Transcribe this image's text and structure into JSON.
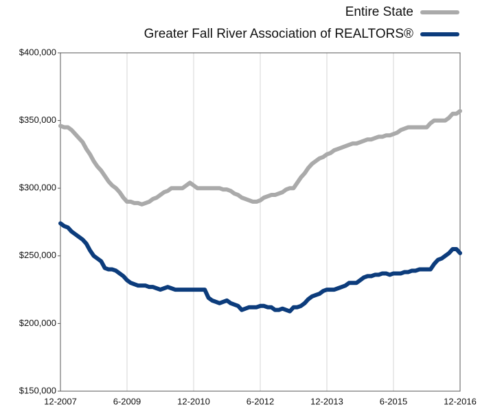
{
  "chart_data": {
    "type": "line",
    "categories": [
      "12-2007",
      null,
      null,
      null,
      null,
      null,
      null,
      null,
      null,
      null,
      null,
      null,
      null,
      null,
      null,
      null,
      null,
      null,
      "6-2009",
      null,
      null,
      null,
      null,
      null,
      null,
      null,
      null,
      null,
      null,
      null,
      null,
      null,
      null,
      null,
      null,
      null,
      "12-2010",
      null,
      null,
      null,
      null,
      null,
      null,
      null,
      null,
      null,
      null,
      null,
      null,
      null,
      null,
      null,
      null,
      null,
      "6-2012",
      null,
      null,
      null,
      null,
      null,
      null,
      null,
      null,
      null,
      null,
      null,
      null,
      null,
      null,
      null,
      null,
      null,
      "12-2013",
      null,
      null,
      null,
      null,
      null,
      null,
      null,
      null,
      null,
      null,
      null,
      null,
      null,
      null,
      null,
      null,
      null,
      "6-2015",
      null,
      null,
      null,
      null,
      null,
      null,
      null,
      null,
      null,
      null,
      null,
      null,
      null,
      null,
      null,
      null,
      null,
      "12-2016"
    ],
    "series": [
      {
        "name": "Entire State",
        "color": "#aaaaaa",
        "values": [
          346000,
          345000,
          345000,
          343000,
          340000,
          337000,
          334000,
          329000,
          325000,
          320000,
          316000,
          313000,
          309000,
          305000,
          302000,
          300000,
          297000,
          293000,
          290000,
          290000,
          289000,
          289000,
          288000,
          289000,
          290000,
          292000,
          293000,
          295000,
          297000,
          298000,
          300000,
          300000,
          300000,
          300000,
          302000,
          304000,
          302000,
          300000,
          300000,
          300000,
          300000,
          300000,
          300000,
          300000,
          299000,
          299000,
          298000,
          296000,
          295000,
          293000,
          292000,
          291000,
          290000,
          290000,
          291000,
          293000,
          294000,
          295000,
          295000,
          296000,
          297000,
          299000,
          300000,
          300000,
          304000,
          308000,
          311000,
          315000,
          318000,
          320000,
          322000,
          323000,
          325000,
          326000,
          328000,
          329000,
          330000,
          331000,
          332000,
          333000,
          333000,
          334000,
          335000,
          336000,
          336000,
          337000,
          338000,
          338000,
          339000,
          339000,
          340000,
          341000,
          343000,
          344000,
          345000,
          345000,
          345000,
          345000,
          345000,
          345000,
          348000,
          350000,
          350000,
          350000,
          350000,
          352000,
          355000,
          355000,
          357000
        ]
      },
      {
        "name": "Greater Fall River Association of REALTORS®",
        "color": "#0c3c7c",
        "values": [
          274000,
          272000,
          271000,
          268000,
          266000,
          264000,
          262000,
          259000,
          254000,
          250000,
          248000,
          246000,
          241000,
          240000,
          240000,
          239000,
          237000,
          235000,
          232000,
          230000,
          229000,
          228000,
          228000,
          228000,
          227000,
          227000,
          226000,
          225000,
          226000,
          227000,
          226000,
          225000,
          225000,
          225000,
          225000,
          225000,
          225000,
          225000,
          225000,
          225000,
          219000,
          217000,
          216000,
          215000,
          216000,
          217000,
          215000,
          214000,
          213000,
          210000,
          211000,
          212000,
          212000,
          212000,
          213000,
          213000,
          212000,
          212000,
          210000,
          210000,
          211000,
          210000,
          209000,
          212000,
          212000,
          213000,
          215000,
          218000,
          220000,
          221000,
          222000,
          224000,
          225000,
          225000,
          225000,
          226000,
          227000,
          228000,
          230000,
          230000,
          230000,
          232000,
          234000,
          235000,
          235000,
          236000,
          236000,
          237000,
          237000,
          236000,
          237000,
          237000,
          237000,
          238000,
          238000,
          239000,
          239000,
          240000,
          240000,
          240000,
          240000,
          244000,
          247000,
          248000,
          250000,
          252000,
          255000,
          255000,
          252000
        ]
      }
    ],
    "ylim": [
      150000,
      400000
    ],
    "yticks": [
      {
        "value": 150000,
        "label": "$150,000"
      },
      {
        "value": 200000,
        "label": "$200,000"
      },
      {
        "value": 250000,
        "label": "$250,000"
      },
      {
        "value": 300000,
        "label": "$300,000"
      },
      {
        "value": 350000,
        "label": "$350,000"
      },
      {
        "value": 400000,
        "label": "$400,000"
      }
    ],
    "grid": "x",
    "legend": "upper right"
  }
}
